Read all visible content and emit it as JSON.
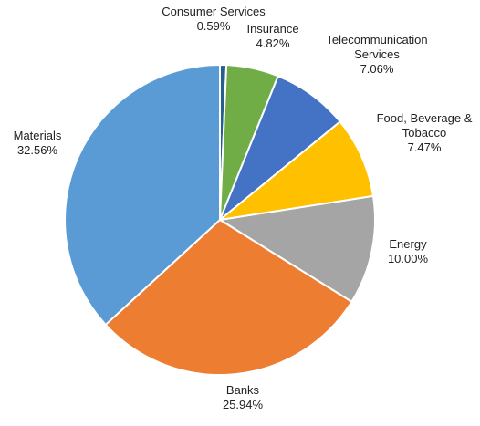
{
  "chart_data": {
    "type": "pie",
    "title": "",
    "start_angle_deg": 0,
    "direction": "clockwise",
    "slice_border_color": "#ffffff",
    "slices": [
      {
        "name_lines": [
          "Consumer Services"
        ],
        "label": "Consumer Services",
        "value": 0.59,
        "value_label": "0.59%",
        "color": "#255e91"
      },
      {
        "name_lines": [
          "Insurance"
        ],
        "label": "Insurance",
        "value": 4.82,
        "value_label": "4.82%",
        "color": "#70ad47"
      },
      {
        "name_lines": [
          "Telecommunication",
          "Services"
        ],
        "label": "Telecommunication Services",
        "value": 7.06,
        "value_label": "7.06%",
        "color": "#4472c4"
      },
      {
        "name_lines": [
          "Food, Beverage &",
          "Tobacco"
        ],
        "label": "Food, Beverage & Tobacco",
        "value": 7.47,
        "value_label": "7.47%",
        "color": "#ffc000"
      },
      {
        "name_lines": [
          "Energy"
        ],
        "label": "Energy",
        "value": 10.0,
        "value_label": "10.00%",
        "color": "#a5a5a5"
      },
      {
        "name_lines": [
          "Banks"
        ],
        "label": "Banks",
        "value": 25.94,
        "value_label": "25.94%",
        "color": "#ed7d31"
      },
      {
        "name_lines": [
          "Materials"
        ],
        "label": "Materials",
        "value": 32.56,
        "value_label": "32.56%",
        "color": "#5b9bd5"
      }
    ]
  }
}
